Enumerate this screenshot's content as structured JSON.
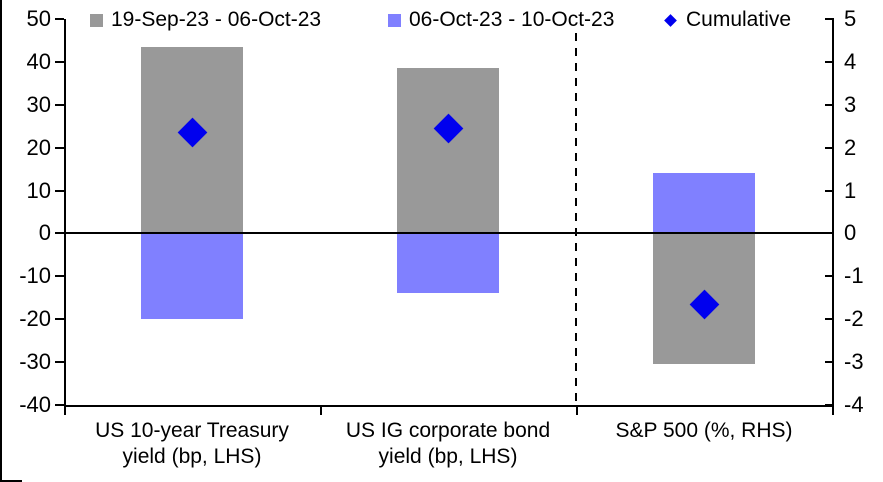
{
  "chart_data": {
    "type": "bar",
    "title": "",
    "grid": "off",
    "legend_position": "top",
    "categories": [
      {
        "lines": [
          "US 10-year Treasury",
          "yield (bp, LHS)"
        ],
        "rhs": false
      },
      {
        "lines": [
          "US IG corporate bond",
          "yield (bp, LHS)"
        ],
        "rhs": false
      },
      {
        "lines": [
          "S&P 500 (%, RHS)"
        ],
        "rhs": true
      }
    ],
    "series": [
      {
        "name": "19-Sep-23 - 06-Oct-23",
        "kind": "bar",
        "color": "#999999",
        "values": [
          43.5,
          38.5,
          -3.05
        ]
      },
      {
        "name": "06-Oct-23 - 10-Oct-23",
        "kind": "bar",
        "color": "#8080FF",
        "values": [
          -20,
          -14,
          1.4
        ]
      },
      {
        "name": "Cumulative",
        "kind": "diamond",
        "color": "#0000EE",
        "values": [
          23.5,
          24.5,
          -1.65
        ]
      }
    ],
    "lhs_axis": {
      "ticks": [
        50,
        40,
        30,
        20,
        10,
        0,
        -10,
        -20,
        -30,
        -40
      ],
      "range": [
        -40,
        50
      ]
    },
    "rhs_axis": {
      "ticks": [
        5,
        4,
        3,
        2,
        1,
        0,
        -1,
        -2,
        -3,
        -4
      ],
      "range": [
        -4,
        5
      ]
    },
    "zero_line": true,
    "separator_after_category": 2,
    "colors": {
      "axis": "#000000",
      "background": "#FFFFFF"
    }
  }
}
